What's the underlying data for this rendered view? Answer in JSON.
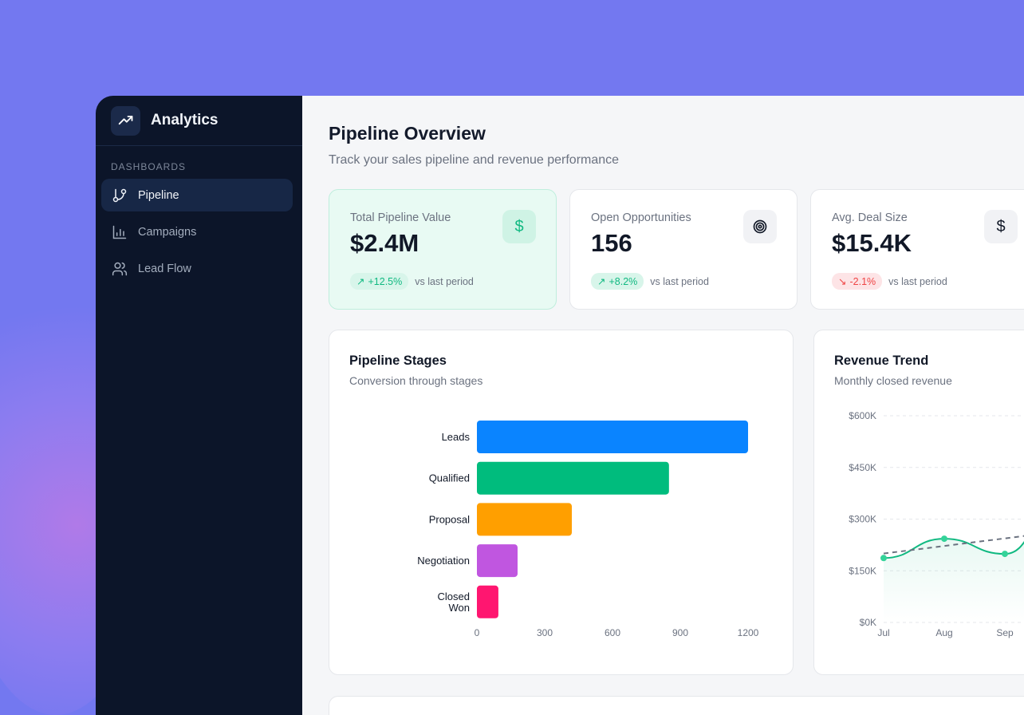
{
  "app": {
    "title": "Analytics",
    "icon": "trending-up-icon"
  },
  "sidebar": {
    "section": "DASHBOARDS",
    "items": [
      {
        "label": "Pipeline",
        "icon": "git-branch-icon",
        "active": true
      },
      {
        "label": "Campaigns",
        "icon": "bar-chart-icon",
        "active": false
      },
      {
        "label": "Lead Flow",
        "icon": "users-icon",
        "active": false
      }
    ]
  },
  "header": {
    "title": "Pipeline Overview",
    "subtitle": "Track your sales pipeline and revenue performance"
  },
  "kpis": [
    {
      "label": "Total Pipeline Value",
      "value": "$2.4M",
      "change": "+12.5%",
      "trend": "up",
      "note": "vs last period",
      "icon": "dollar-icon"
    },
    {
      "label": "Open Opportunities",
      "value": "156",
      "change": "+8.2%",
      "trend": "up",
      "note": "vs last period",
      "icon": "target-icon"
    },
    {
      "label": "Avg. Deal Size",
      "value": "$15.4K",
      "change": "-2.1%",
      "trend": "down",
      "note": "vs last period",
      "icon": "dollar-icon"
    }
  ],
  "colors": {
    "accent": "#10b981",
    "negative": "#ef4444",
    "sidebar": "#0c1529",
    "background": "#7378f0"
  },
  "chart_data": [
    {
      "type": "bar",
      "orientation": "horizontal",
      "title": "Pipeline Stages",
      "subtitle": "Conversion through stages",
      "categories": [
        "Leads",
        "Qualified",
        "Proposal",
        "Negotiation",
        "Closed Won"
      ],
      "values": [
        1200,
        850,
        420,
        180,
        95
      ],
      "colors": [
        "#0a84ff",
        "#00bc7d",
        "#ff9f00",
        "#c056e0",
        "#ff1670"
      ],
      "xticks": [
        "0",
        "300",
        "600",
        "900",
        "1200"
      ],
      "xlim": [
        0,
        1200
      ],
      "grid": false
    },
    {
      "type": "line",
      "title": "Revenue Trend",
      "subtitle": "Monthly closed revenue",
      "categories": [
        "Jul",
        "Aug",
        "Sep"
      ],
      "series": [
        {
          "values": [
            187000,
            243000,
            199000
          ],
          "color": "#10b981",
          "style": "smooth-area"
        },
        {
          "values": [
            200000,
            222000,
            244000
          ],
          "color": "#6b7280",
          "style": "dashed-trend"
        }
      ],
      "yticks": [
        "$0K",
        "$150K",
        "$300K",
        "$450K",
        "$600K"
      ],
      "ylim": [
        0,
        600000
      ],
      "grid": true
    }
  ]
}
